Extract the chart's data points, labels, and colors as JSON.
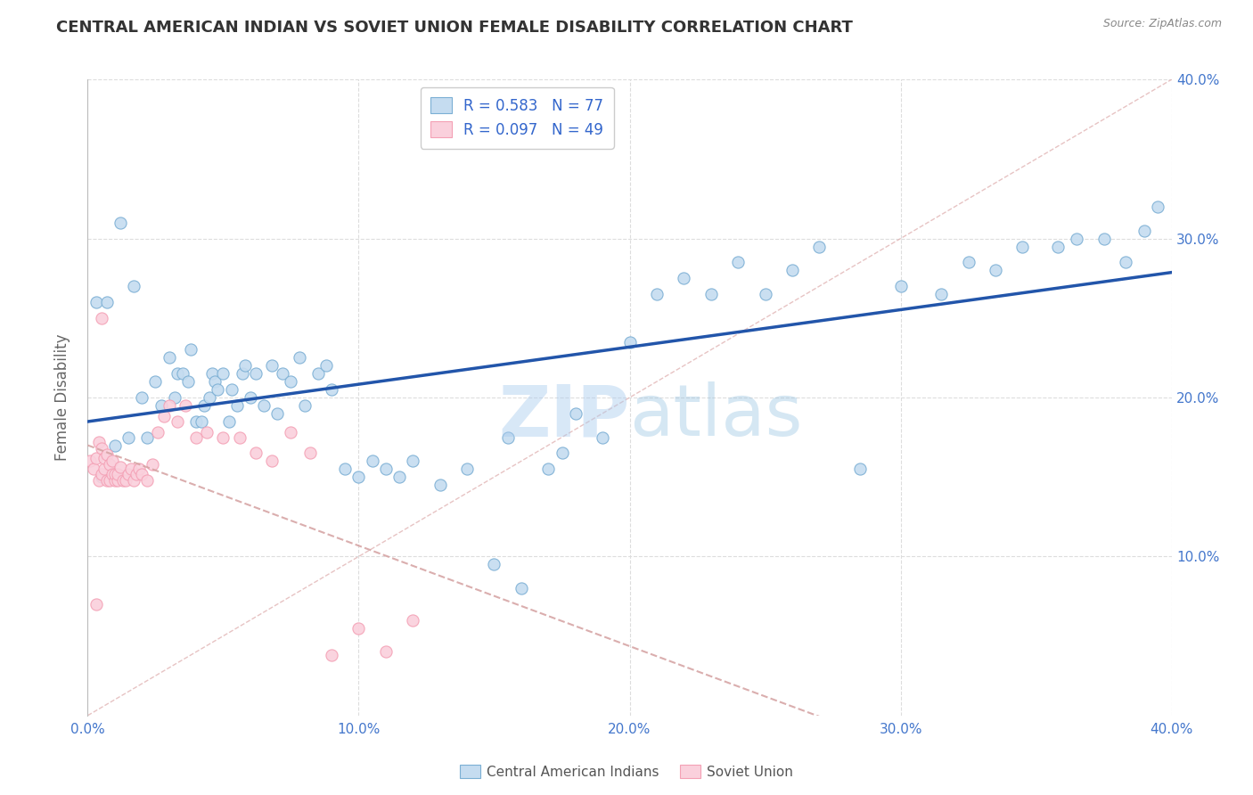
{
  "title": "CENTRAL AMERICAN INDIAN VS SOVIET UNION FEMALE DISABILITY CORRELATION CHART",
  "source": "Source: ZipAtlas.com",
  "ylabel": "Female Disability",
  "xlim": [
    0.0,
    0.4
  ],
  "ylim": [
    0.0,
    0.4
  ],
  "xticks": [
    0.0,
    0.1,
    0.2,
    0.3,
    0.4
  ],
  "yticks": [
    0.1,
    0.2,
    0.3,
    0.4
  ],
  "xtick_labels": [
    "0.0%",
    "10.0%",
    "20.0%",
    "30.0%",
    "40.0%"
  ],
  "right_ytick_labels": [
    "10.0%",
    "20.0%",
    "30.0%",
    "40.0%"
  ],
  "blue_edge": "#7BAFD4",
  "blue_face": "#C5DCF0",
  "pink_edge": "#F4A0B5",
  "pink_face": "#FAD0DC",
  "line_blue": "#2255AA",
  "line_pink_dash": "#D4A0A0",
  "grid_color": "#DDDDDD",
  "bg_color": "#FFFFFF",
  "legend_R1": "R = 0.583",
  "legend_N1": "N = 77",
  "legend_R2": "R = 0.097",
  "legend_N2": "N = 49",
  "legend_text_color": "#3366CC",
  "title_color": "#333333",
  "source_color": "#888888",
  "axis_tick_color": "#4477CC",
  "ylabel_color": "#666666",
  "bottom_label_color": "#555555",
  "blue_points_x": [
    0.003,
    0.005,
    0.007,
    0.01,
    0.012,
    0.015,
    0.017,
    0.02,
    0.022,
    0.025,
    0.027,
    0.03,
    0.032,
    0.033,
    0.035,
    0.037,
    0.038,
    0.04,
    0.042,
    0.043,
    0.045,
    0.046,
    0.047,
    0.048,
    0.05,
    0.052,
    0.053,
    0.055,
    0.057,
    0.058,
    0.06,
    0.062,
    0.065,
    0.068,
    0.07,
    0.072,
    0.075,
    0.078,
    0.08,
    0.085,
    0.088,
    0.09,
    0.095,
    0.1,
    0.105,
    0.11,
    0.115,
    0.12,
    0.13,
    0.14,
    0.15,
    0.155,
    0.16,
    0.17,
    0.175,
    0.18,
    0.19,
    0.2,
    0.21,
    0.22,
    0.23,
    0.24,
    0.25,
    0.26,
    0.27,
    0.285,
    0.3,
    0.315,
    0.325,
    0.335,
    0.345,
    0.358,
    0.365,
    0.375,
    0.383,
    0.39,
    0.395
  ],
  "blue_points_y": [
    0.26,
    0.15,
    0.26,
    0.17,
    0.31,
    0.175,
    0.27,
    0.2,
    0.175,
    0.21,
    0.195,
    0.225,
    0.2,
    0.215,
    0.215,
    0.21,
    0.23,
    0.185,
    0.185,
    0.195,
    0.2,
    0.215,
    0.21,
    0.205,
    0.215,
    0.185,
    0.205,
    0.195,
    0.215,
    0.22,
    0.2,
    0.215,
    0.195,
    0.22,
    0.19,
    0.215,
    0.21,
    0.225,
    0.195,
    0.215,
    0.22,
    0.205,
    0.155,
    0.15,
    0.16,
    0.155,
    0.15,
    0.16,
    0.145,
    0.155,
    0.095,
    0.175,
    0.08,
    0.155,
    0.165,
    0.19,
    0.175,
    0.235,
    0.265,
    0.275,
    0.265,
    0.285,
    0.265,
    0.28,
    0.295,
    0.155,
    0.27,
    0.265,
    0.285,
    0.28,
    0.295,
    0.295,
    0.3,
    0.3,
    0.285,
    0.305,
    0.32
  ],
  "pink_points_x": [
    0.001,
    0.002,
    0.003,
    0.004,
    0.004,
    0.005,
    0.005,
    0.006,
    0.006,
    0.007,
    0.007,
    0.008,
    0.008,
    0.009,
    0.009,
    0.01,
    0.01,
    0.011,
    0.011,
    0.012,
    0.013,
    0.014,
    0.015,
    0.016,
    0.017,
    0.018,
    0.019,
    0.02,
    0.022,
    0.024,
    0.026,
    0.028,
    0.03,
    0.033,
    0.036,
    0.04,
    0.044,
    0.05,
    0.056,
    0.062,
    0.068,
    0.075,
    0.082,
    0.09,
    0.1,
    0.11,
    0.12,
    0.005,
    0.003
  ],
  "pink_points_y": [
    0.16,
    0.155,
    0.162,
    0.148,
    0.172,
    0.152,
    0.168,
    0.155,
    0.162,
    0.148,
    0.164,
    0.148,
    0.158,
    0.152,
    0.16,
    0.148,
    0.152,
    0.148,
    0.152,
    0.156,
    0.148,
    0.148,
    0.152,
    0.155,
    0.148,
    0.152,
    0.155,
    0.152,
    0.148,
    0.158,
    0.178,
    0.188,
    0.195,
    0.185,
    0.195,
    0.175,
    0.178,
    0.175,
    0.175,
    0.165,
    0.16,
    0.178,
    0.165,
    0.038,
    0.055,
    0.04,
    0.06,
    0.25,
    0.07
  ]
}
